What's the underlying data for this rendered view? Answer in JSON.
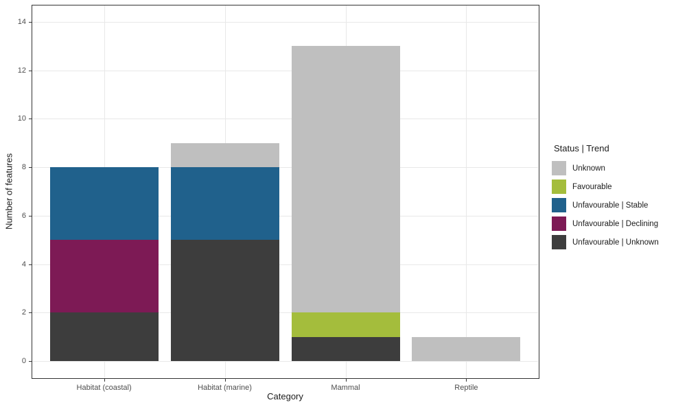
{
  "chart_data": {
    "type": "bar",
    "stacked": true,
    "title": "",
    "xlabel": "Category",
    "ylabel": "Number of features",
    "legend_title": "Status | Trend",
    "legend_position": "right",
    "categories": [
      "Habitat (coastal)",
      "Habitat (marine)",
      "Mammal",
      "Reptile"
    ],
    "series": [
      {
        "name": "Unfavourable | Unknown",
        "color": "#3d3d3d",
        "values": [
          2,
          5,
          1,
          0
        ]
      },
      {
        "name": "Unfavourable | Declining",
        "color": "#7d1a55",
        "values": [
          3,
          0,
          0,
          0
        ]
      },
      {
        "name": "Unfavourable | Stable",
        "color": "#20618c",
        "values": [
          3,
          3,
          0,
          0
        ]
      },
      {
        "name": "Favourable",
        "color": "#a4bd3c",
        "values": [
          0,
          0,
          1,
          0
        ]
      },
      {
        "name": "Unknown",
        "color": "#bfbfbf",
        "values": [
          0,
          1,
          11,
          1
        ]
      }
    ],
    "stack_order_note": "series listed bottom-to-top of each bar",
    "stack_totals": [
      8,
      9,
      13,
      1
    ],
    "legend_order": [
      "Unknown",
      "Favourable",
      "Unfavourable | Stable",
      "Unfavourable | Declining",
      "Unfavourable | Unknown"
    ],
    "y_ticks": [
      0,
      2,
      4,
      6,
      8,
      10,
      12,
      14
    ],
    "ylim": [
      -0.7,
      14.7
    ],
    "grid": "major horizontal every 2 units; one vertical gridline per category; no minor gridlines",
    "colors": {
      "grid": "#e8e8e8",
      "panel_border": "#333333",
      "tick": "#333333",
      "tick_label": "#4d4d4d",
      "axis_title": "#1a1a1a",
      "background": "#ffffff"
    }
  }
}
